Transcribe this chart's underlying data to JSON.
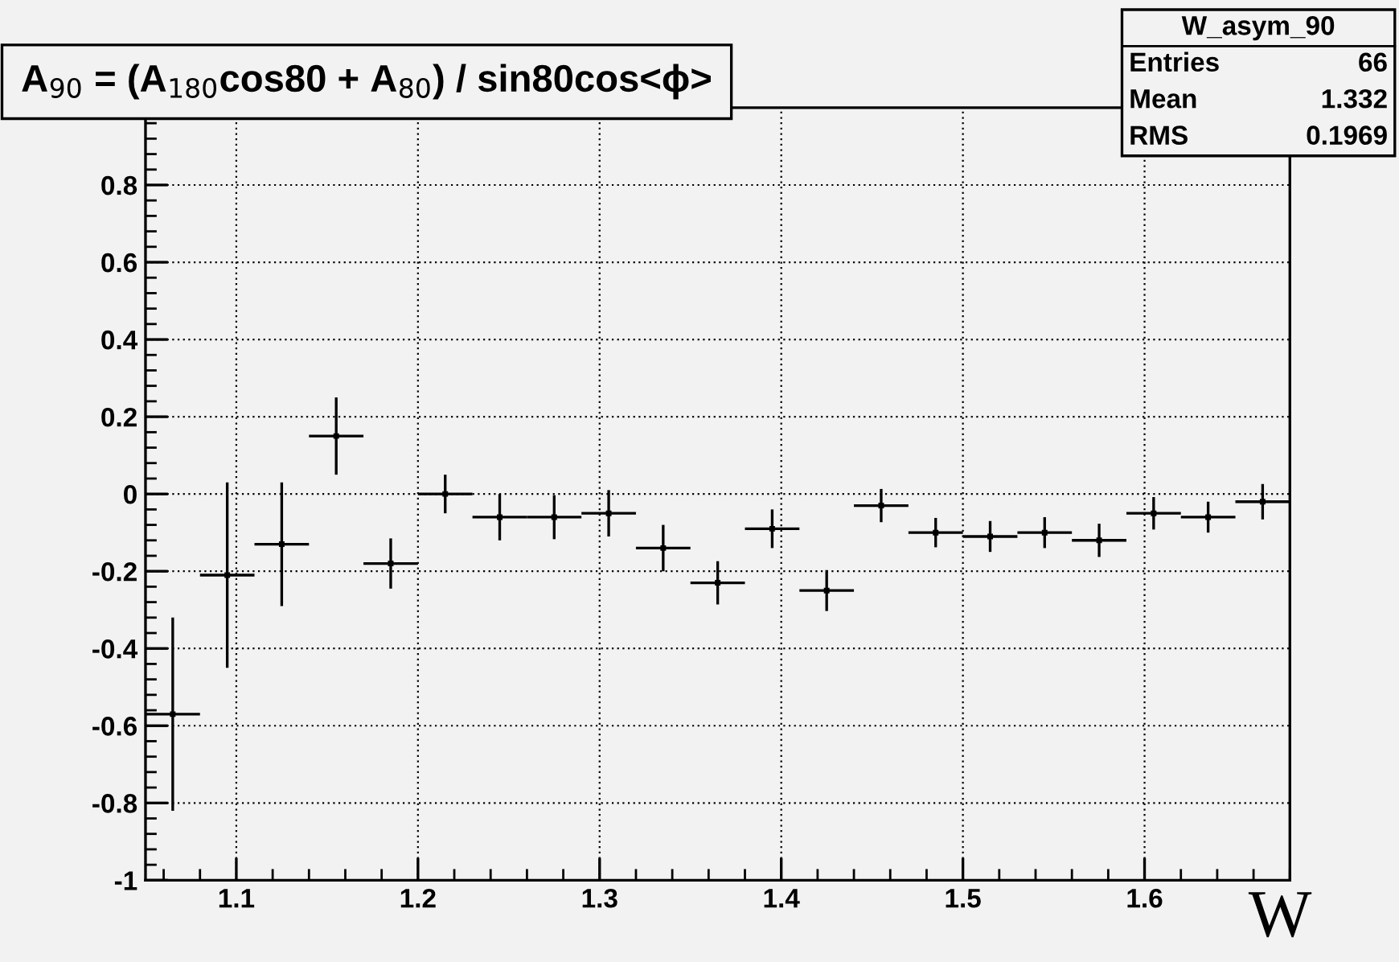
{
  "chart_data": {
    "type": "scatter",
    "title": "A$_{90}$ = (A$_{180}$cos80 + A$_{80}$) / sin80cos<ϕ>",
    "xlabel": "W",
    "annotations": [
      "W_asym_90",
      "Entries 66",
      "Mean 1.332",
      "RMS 0.1969"
    ],
    "x": [
      1.065,
      1.095,
      1.125,
      1.155,
      1.185,
      1.215,
      1.245,
      1.275,
      1.305,
      1.335,
      1.365,
      1.395,
      1.425,
      1.455,
      1.485,
      1.515,
      1.545,
      1.575,
      1.605,
      1.635,
      1.665
    ],
    "series": [
      {
        "color": "#000000",
        "values": [
          -0.57,
          -0.21,
          -0.13,
          0.15,
          -0.18,
          0.0,
          -0.06,
          -0.06,
          -0.05,
          -0.14,
          -0.23,
          -0.09,
          -0.25,
          -0.03,
          -0.1,
          -0.11,
          -0.1,
          -0.12,
          -0.05,
          -0.06,
          -0.02
        ],
        "errors": [
          0.25,
          0.24,
          0.16,
          0.1,
          0.065,
          0.05,
          0.06,
          0.057,
          0.06,
          0.06,
          0.056,
          0.05,
          0.053,
          0.043,
          0.038,
          0.04,
          0.04,
          0.043,
          0.042,
          0.04,
          0.046
        ],
        "xerrors": [
          0.015,
          0.015,
          0.015,
          0.015,
          0.015,
          0.015,
          0.015,
          0.015,
          0.015,
          0.015,
          0.015,
          0.015,
          0.015,
          0.015,
          0.015,
          0.015,
          0.015,
          0.015,
          0.015,
          0.015,
          0.015
        ]
      }
    ],
    "xlim": [
      1.05,
      1.68
    ],
    "xticks": [
      1.1,
      1.2,
      1.3,
      1.4,
      1.5,
      1.6
    ],
    "ylim": [
      -1,
      1
    ],
    "yticks": [
      -1,
      -0.8,
      -0.6,
      -0.4,
      -0.2,
      0,
      0.2,
      0.4,
      0.6,
      0.8
    ],
    "grid": true
  }
}
